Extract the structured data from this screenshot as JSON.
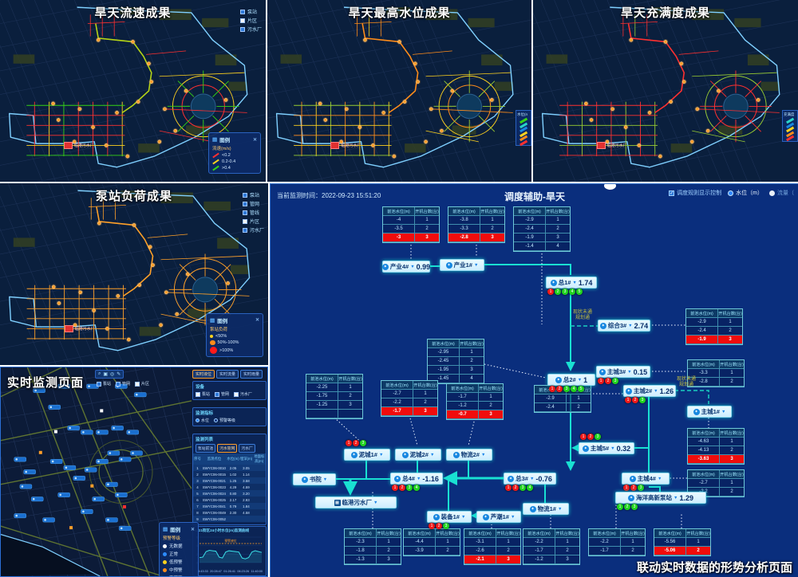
{
  "map_panels": [
    {
      "title": "旱天流速成果",
      "plant": "临港污水厂",
      "layers": [
        {
          "label": "泵站",
          "checked": true
        },
        {
          "label": "片区",
          "checked": false
        },
        {
          "label": "污水厂",
          "checked": true
        }
      ],
      "legend": {
        "title": "图例",
        "subtitle": "流速(m/s)",
        "items": [
          {
            "color": "#ff3030",
            "label": "<0.2"
          },
          {
            "color": "#ffd21e",
            "label": "0.2-0.4"
          },
          {
            "color": "#35d415",
            "label": ">0.4"
          }
        ]
      },
      "scheme": {
        "net": [
          "#ff3030",
          "#ffd21e",
          "#35d415",
          "#ff3030",
          "#ff3030"
        ],
        "trunk": "#b5d416"
      }
    },
    {
      "title": "旱天最高水位成果",
      "plant": "临港污水厂",
      "edge_legend": {
        "title": "水位(m)",
        "colors": [
          "#35d415",
          "#2ad4c8",
          "#1787e0",
          "#ffd21e",
          "#ff8c1a",
          "#ff3030"
        ]
      },
      "scheme": {
        "net": [
          "#ff8c1a",
          "#ffd21e",
          "#9acd32",
          "#ff8c1a",
          "#ffd21e"
        ],
        "trunk": "#ff8c1a"
      }
    },
    {
      "title": "旱天充满度成果",
      "plant": "临港污水厂",
      "edge_legend": {
        "title": "充满度",
        "colors": [
          "#2ad4c8",
          "#1787e0",
          "#ffd21e",
          "#ff8c1a",
          "#ff3030"
        ]
      },
      "scheme": {
        "net": [
          "#ff3030",
          "#9acd32",
          "#ff3030",
          "#ff3030",
          "#9acd32"
        ],
        "trunk": "#ff3030"
      }
    },
    {
      "title": "泵站负荷成果",
      "plant": "临港污水厂",
      "layers": [
        {
          "label": "泵站",
          "checked": true
        },
        {
          "label": "管网",
          "checked": true
        },
        {
          "label": "管线",
          "checked": true
        },
        {
          "label": "片区",
          "checked": false
        },
        {
          "label": "污水厂",
          "checked": true
        }
      ],
      "legend": {
        "title": "图例",
        "subtitle": "泵站负荷",
        "items": [
          {
            "color": "#ffd21e",
            "label": "<50%"
          },
          {
            "color": "#ff8c1a",
            "label": "50%-100%"
          },
          {
            "color": "#ff1a1a",
            "label": ">100%"
          }
        ]
      },
      "scheme": {
        "net": [
          "#ffa028",
          "#ffa028",
          "#ffa028",
          "#ffa028",
          "#ffa028"
        ],
        "trunk": "#ffa028"
      }
    }
  ],
  "monitor_panel": {
    "title": "实时监测页面",
    "map_layers": [
      {
        "label": "泵站",
        "checked": true
      },
      {
        "label": "管网",
        "checked": true
      },
      {
        "label": "片区",
        "checked": false
      }
    ],
    "tabs": [
      {
        "label": "实时液位",
        "active": true
      },
      {
        "label": "实时流量",
        "active": false
      },
      {
        "label": "实时雨量",
        "active": false
      }
    ],
    "device_box": {
      "title": "设备",
      "items": [
        {
          "label": "泵站",
          "checked": false
        },
        {
          "label": "管网",
          "checked": true
        },
        {
          "label": "污水厂",
          "checked": false
        }
      ]
    },
    "indicator_box": {
      "title": "监测指标",
      "options": [
        {
          "label": "水位",
          "selected": true
        },
        {
          "label": "预警等级",
          "selected": false
        }
      ]
    },
    "list_box": {
      "title": "监测列表",
      "buttons": [
        {
          "label": "泵站前池",
          "active": false
        },
        {
          "label": "污水管网",
          "active": true
        },
        {
          "label": "污水厂",
          "active": false
        }
      ],
      "columns": [
        "序号",
        "监测点位",
        "水位(m)",
        "埋深(m)",
        "地面标高(m)"
      ],
      "rows": [
        [
          "1",
          "SWYC06-0010",
          "2.05",
          "3.05",
          ""
        ],
        [
          "2",
          "SWYC06-0015",
          "1.02",
          "1.14",
          ""
        ],
        [
          "3",
          "SWYC06-0021",
          "1.25",
          "3.58",
          ""
        ],
        [
          "4",
          "SWYC06-0023",
          "4.29",
          "4.59",
          ""
        ],
        [
          "5",
          "SWYC06-0024",
          "0.80",
          "3.20",
          ""
        ],
        [
          "6",
          "SWYC06-0025",
          "2.17",
          "2.93",
          ""
        ],
        [
          "7",
          "SWYC06-0041",
          "0.79",
          "1.84",
          ""
        ],
        [
          "8",
          "SWYC06-0049",
          "2.30",
          "4.58",
          ""
        ],
        [
          "9",
          "SWYC06-0052",
          "",
          "",
          ""
        ]
      ]
    },
    "legend": {
      "title": "图例",
      "subtitle": "预警等级",
      "items": [
        {
          "color": "#ffffff",
          "label": "无数据"
        },
        {
          "color": "#2d8cff",
          "label": "正常"
        },
        {
          "color": "#ffd21e",
          "label": "低预警"
        },
        {
          "color": "#ff8c1a",
          "label": "中预警"
        },
        {
          "color": "#ff3030",
          "label": "高预警"
        }
      ]
    },
    "chart_box": {
      "title": "LG1街区24小时水位(m)监测曲线",
      "threshold_label": "预警液位",
      "threshold": 4.5,
      "ymax": 6,
      "yticks": [
        0,
        1,
        2,
        3,
        4,
        5,
        6
      ],
      "x_labels": [
        "15:43:33",
        "20:28:47",
        "01:26:41",
        "06:23:26",
        "11:40:00"
      ],
      "values": [
        1.2,
        1.3,
        2.6,
        2.9,
        2.8,
        2.7,
        1.3,
        1.1,
        2.5,
        2.8,
        2.7,
        2.6,
        2.5,
        1.1,
        0.9,
        1.2,
        2.5,
        2.8,
        2.6,
        2.4
      ]
    }
  },
  "dispatch_panel": {
    "time_label": "当前监测时间：",
    "time": "2022-09-23 15:51:20",
    "title": "调度辅助-旱天",
    "controls": {
      "checkbox_label": "调度规则显示控制",
      "checkbox_checked": true,
      "radio_on": "水位（m）",
      "radio_off": "流量（"
    },
    "rule_table_header": [
      "前池水位(m)",
      "开机台数(台)"
    ],
    "link_label": [
      "现状未通",
      "规划通"
    ],
    "caption": "联动实时数据的形势分析页面",
    "nodes": [
      {
        "id": "chanye4",
        "label": "产业4#",
        "value": "0.99",
        "dots": "",
        "dots_pos": "below",
        "icon": "pump"
      },
      {
        "id": "chanye1",
        "label": "产业1#",
        "value": "",
        "dots": "",
        "dots_pos": "below",
        "icon": "pump"
      },
      {
        "id": "zong1",
        "label": "总1#",
        "value": "1.74",
        "dots": "RGGGG",
        "dots_pos": "below",
        "icon": "pump"
      },
      {
        "id": "zonghe3",
        "label": "综合3#",
        "value": "2.74",
        "dots": "",
        "dots_pos": "below",
        "icon": "pump"
      },
      {
        "id": "zong2",
        "label": "总2#",
        "value": "1",
        "dots": "RRGGG",
        "dots_pos": "below",
        "icon": "pump"
      },
      {
        "id": "zhucheng3",
        "label": "主城3#",
        "value": "0.15",
        "dots": "RRG",
        "dots_pos": "below",
        "icon": "pump"
      },
      {
        "id": "zhucheng2",
        "label": "主城2#",
        "value": "1.26",
        "dots": "RRG",
        "dots_pos": "below",
        "icon": "pump"
      },
      {
        "id": "zhucheng1",
        "label": "主城1#",
        "value": "",
        "dots": "",
        "dots_pos": "below",
        "icon": "pump"
      },
      {
        "id": "zhucheng5",
        "label": "主城5#",
        "value": "0.32",
        "dots": "RRG",
        "dots_pos": "above",
        "icon": "pump"
      },
      {
        "id": "nicheng1",
        "label": "泥城1#",
        "value": "",
        "dots": "RRG",
        "dots_pos": "above",
        "icon": "pump"
      },
      {
        "id": "nicheng2",
        "label": "泥城2#",
        "value": "",
        "dots": "",
        "dots_pos": "below",
        "icon": "pump"
      },
      {
        "id": "wuliu2",
        "label": "物流2#",
        "value": "",
        "dots": "",
        "dots_pos": "below",
        "icon": "pump"
      },
      {
        "id": "shuyuan",
        "label": "书院",
        "value": "",
        "dots": "",
        "dots_pos": "below",
        "icon": "pump"
      },
      {
        "id": "zong4",
        "label": "总4#",
        "value": "-1.16",
        "dots": "RRGG",
        "dots_pos": "below",
        "icon": "pump"
      },
      {
        "id": "zong3",
        "label": "总3#",
        "value": "-0.76",
        "dots": "RRGG",
        "dots_pos": "below",
        "icon": "pump"
      },
      {
        "id": "zhucheng4",
        "label": "主城4#",
        "value": "",
        "dots": "RRG",
        "dots_pos": "below",
        "icon": "pump"
      },
      {
        "id": "lingang",
        "label": "临港污水厂",
        "value": "",
        "dots": "",
        "dots_pos": "below",
        "icon": "plant"
      },
      {
        "id": "haiyang",
        "label": "海洋高新泵站",
        "value": "1.29",
        "dots": "GGG",
        "dots_pos": "below",
        "icon": "pump"
      },
      {
        "id": "wuliu1",
        "label": "物流1#",
        "value": "",
        "dots": "",
        "dots_pos": "below",
        "icon": "pump"
      },
      {
        "id": "zhuangbei1",
        "label": "装备1#",
        "value": "",
        "dots": "RRG",
        "dots_pos": "below",
        "icon": "pump"
      },
      {
        "id": "luchao1",
        "label": "芦潮1#",
        "value": "",
        "dots": "",
        "dots_pos": "below",
        "icon": "pump"
      }
    ],
    "tables": [
      {
        "id": "tA1",
        "rows": [
          [
            "-4",
            "1"
          ],
          [
            "-3.5",
            "2"
          ],
          [
            "-3",
            "3"
          ]
        ],
        "red": 2
      },
      {
        "id": "tA2",
        "rows": [
          [
            "-3.8",
            "1"
          ],
          [
            "-3.3",
            "2"
          ],
          [
            "-2.8",
            "3"
          ]
        ],
        "red": 2
      },
      {
        "id": "tA3",
        "rows": [
          [
            "-2.9",
            "1"
          ],
          [
            "-2.4",
            "2"
          ],
          [
            "-1.9",
            "3"
          ],
          [
            "-1.4",
            "4"
          ]
        ],
        "red": -1
      },
      {
        "id": "t4",
        "rows": [
          [
            "-2.9",
            "1"
          ],
          [
            "-2.4",
            "2"
          ],
          [
            "-1.9",
            "3"
          ]
        ],
        "red": 2
      },
      {
        "id": "t5",
        "rows": [
          [
            "-2.95",
            "1"
          ],
          [
            "-2.45",
            "2"
          ],
          [
            "-1.95",
            "3"
          ],
          [
            "-1.45",
            "4"
          ]
        ],
        "red": -1
      },
      {
        "id": "t6",
        "rows": [
          [
            "-3.3",
            "1"
          ],
          [
            "-2.8",
            "2"
          ]
        ],
        "red": -1
      },
      {
        "id": "t7",
        "rows": [
          [
            "-2.25",
            "1"
          ],
          [
            "-1.75",
            "2"
          ],
          [
            "-1.25",
            "3"
          ],
          [
            "",
            ""
          ]
        ],
        "red": -1
      },
      {
        "id": "t8",
        "rows": [
          [
            "-2.7",
            "1"
          ],
          [
            "-2.2",
            "2"
          ],
          [
            "-1.7",
            "3"
          ]
        ],
        "red": 2
      },
      {
        "id": "t9",
        "rows": [
          [
            "-1.7",
            "1"
          ],
          [
            "-1.2",
            "2"
          ],
          [
            "-0.7",
            "3"
          ]
        ],
        "red": 2
      },
      {
        "id": "t10",
        "rows": [
          [
            "-2.9",
            "1"
          ],
          [
            "-2.4",
            "2"
          ]
        ],
        "red": -1
      },
      {
        "id": "t11",
        "rows": [
          [
            "-4.63",
            "1"
          ],
          [
            "-4.13",
            "2"
          ],
          [
            "-3.63",
            "3"
          ]
        ],
        "red": 2
      },
      {
        "id": "t12",
        "rows": [
          [
            "-2.7",
            "1"
          ],
          [
            "-2.2",
            "2"
          ]
        ],
        "red": -1
      },
      {
        "id": "tb1",
        "rows": [
          [
            "-2.3",
            "1"
          ],
          [
            "-1.8",
            "2"
          ],
          [
            "-1.3",
            "3"
          ]
        ],
        "red": -1
      },
      {
        "id": "tb2",
        "rows": [
          [
            "-4.4",
            "1"
          ],
          [
            "-3.9",
            "2"
          ]
        ],
        "red": -1
      },
      {
        "id": "tb3",
        "rows": [
          [
            "-3.1",
            "1"
          ],
          [
            "-2.6",
            "2"
          ],
          [
            "-2.1",
            "3"
          ]
        ],
        "red": 2
      },
      {
        "id": "tb4",
        "rows": [
          [
            "-2.2",
            "1"
          ],
          [
            "-1.7",
            "2"
          ],
          [
            "-1.2",
            "3"
          ]
        ],
        "red": -1
      },
      {
        "id": "tb5",
        "rows": [
          [
            "-2.2",
            "1"
          ],
          [
            "-1.7",
            "2"
          ]
        ],
        "red": -1
      },
      {
        "id": "tb6",
        "rows": [
          [
            "-5.56",
            "1"
          ],
          [
            "-5.06",
            "2"
          ]
        ],
        "red": 1
      }
    ]
  }
}
